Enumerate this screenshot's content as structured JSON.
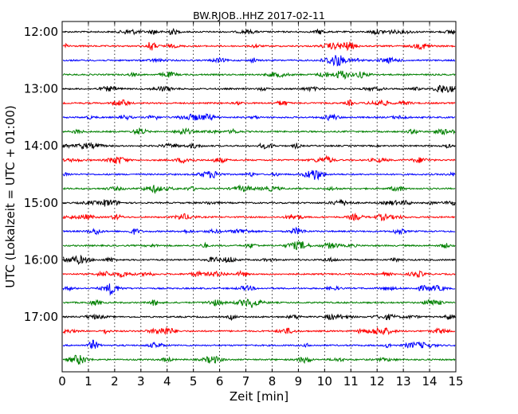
{
  "chart_data": {
    "type": "line",
    "title": "BW.RJOB..HHZ 2017-02-11",
    "xlabel": "Zeit  [min]",
    "ylabel": "UTC (Lokalzeit = UTC + 01:00)",
    "xlim": [
      0,
      15
    ],
    "x_ticks": [
      "0",
      "1",
      "2",
      "3",
      "4",
      "5",
      "6",
      "7",
      "8",
      "9",
      "10",
      "11",
      "12",
      "13",
      "14",
      "15"
    ],
    "y_tick_labels": [
      "12:00",
      "13:00",
      "14:00",
      "15:00",
      "16:00",
      "17:00"
    ],
    "grid": "vertical dotted",
    "trace_interval_minutes": 15,
    "trace_colors": [
      "#000000",
      "#ff0000",
      "#0000ff",
      "#008000"
    ],
    "series": [
      {
        "start": "12:00",
        "color": "#000000"
      },
      {
        "start": "12:15",
        "color": "#ff0000"
      },
      {
        "start": "12:30",
        "color": "#0000ff"
      },
      {
        "start": "12:45",
        "color": "#008000"
      },
      {
        "start": "13:00",
        "color": "#000000"
      },
      {
        "start": "13:15",
        "color": "#ff0000"
      },
      {
        "start": "13:30",
        "color": "#0000ff"
      },
      {
        "start": "13:45",
        "color": "#008000"
      },
      {
        "start": "14:00",
        "color": "#000000"
      },
      {
        "start": "14:15",
        "color": "#ff0000"
      },
      {
        "start": "14:30",
        "color": "#0000ff"
      },
      {
        "start": "14:45",
        "color": "#008000"
      },
      {
        "start": "15:00",
        "color": "#000000"
      },
      {
        "start": "15:15",
        "color": "#ff0000"
      },
      {
        "start": "15:30",
        "color": "#0000ff"
      },
      {
        "start": "15:45",
        "color": "#008000"
      },
      {
        "start": "16:00",
        "color": "#000000"
      },
      {
        "start": "16:15",
        "color": "#ff0000"
      },
      {
        "start": "16:30",
        "color": "#0000ff"
      },
      {
        "start": "16:45",
        "color": "#008000"
      },
      {
        "start": "17:00",
        "color": "#000000"
      },
      {
        "start": "17:15",
        "color": "#ff0000"
      },
      {
        "start": "17:30",
        "color": "#0000ff"
      },
      {
        "start": "17:45",
        "color": "#008000"
      }
    ]
  }
}
